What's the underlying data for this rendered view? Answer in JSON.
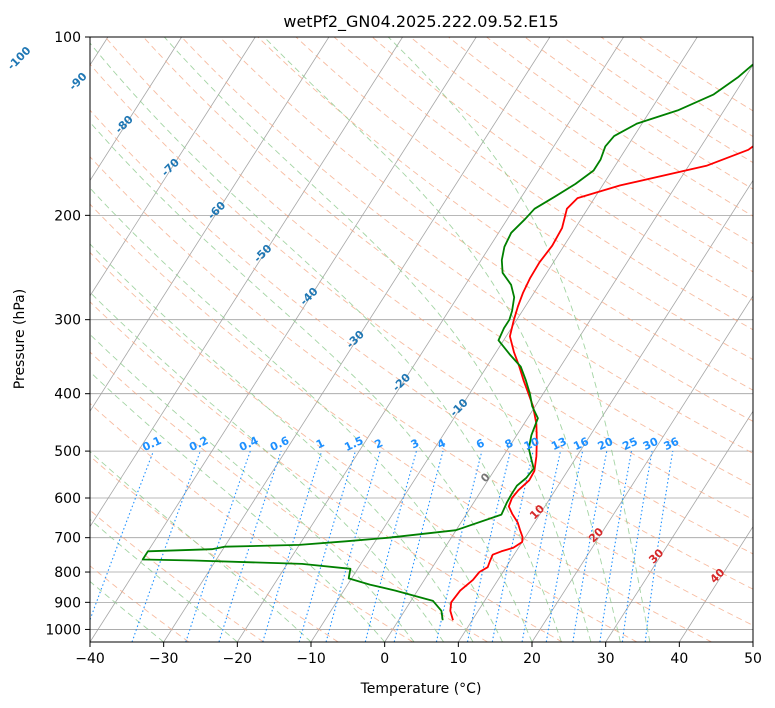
{
  "chart_data": {
    "type": "line",
    "subtype": "skew-T log-P diagram",
    "title": "wetPf2_GN04.2025.222.09.52.E15",
    "xlabel": "Temperature (°C)",
    "ylabel": "Pressure (hPa)",
    "xlim": [
      -40,
      50
    ],
    "ylim": [
      1050,
      100
    ],
    "y_scale": "log",
    "x_ticks": [
      "−40",
      "−30",
      "−20",
      "−10",
      "0",
      "10",
      "20",
      "30",
      "40",
      "50"
    ],
    "y_ticks": [
      "100",
      "200",
      "300",
      "400",
      "500",
      "600",
      "700",
      "800",
      "900",
      "1000"
    ],
    "grid": true,
    "series": [
      {
        "color": "#ff0000",
        "points": [
          [
            7.4,
            965
          ],
          [
            6.2,
            930
          ],
          [
            5.6,
            900
          ],
          [
            5.8,
            860
          ],
          [
            6.6,
            825
          ],
          [
            6.8,
            800
          ],
          [
            7.5,
            785
          ],
          [
            7.3,
            768
          ],
          [
            7.1,
            748
          ],
          [
            8.0,
            738
          ],
          [
            9.3,
            728
          ],
          [
            10.0,
            712
          ],
          [
            9.6,
            698
          ],
          [
            8.7,
            680
          ],
          [
            7.7,
            660
          ],
          [
            6.2,
            638
          ],
          [
            5.1,
            620
          ],
          [
            4.8,
            600
          ],
          [
            5.0,
            582
          ],
          [
            5.6,
            560
          ],
          [
            5.5,
            540
          ],
          [
            4.5,
            510
          ],
          [
            3.2,
            480
          ],
          [
            1.7,
            450
          ],
          [
            -0.3,
            420
          ],
          [
            -2.0,
            400
          ],
          [
            -3.8,
            380
          ],
          [
            -5.6,
            360
          ],
          [
            -7.6,
            340
          ],
          [
            -9.5,
            320
          ],
          [
            -10.4,
            300
          ],
          [
            -11.0,
            285
          ],
          [
            -11.5,
            270
          ],
          [
            -11.8,
            255
          ],
          [
            -11.9,
            240
          ],
          [
            -11.6,
            225
          ],
          [
            -11.8,
            210
          ],
          [
            -12.8,
            195
          ],
          [
            -12.3,
            187
          ],
          [
            -7.6,
            178
          ],
          [
            2.4,
            165
          ],
          [
            6.7,
            155
          ],
          [
            8.4,
            145
          ],
          [
            9.0,
            137
          ],
          [
            11.0,
            127
          ],
          [
            16.2,
            115
          ],
          [
            20.3,
            107
          ],
          [
            23.3,
            100
          ]
        ]
      },
      {
        "color": "#008000",
        "points": [
          [
            6.0,
            965
          ],
          [
            5.0,
            930
          ],
          [
            3.0,
            895
          ],
          [
            -3.0,
            860
          ],
          [
            -7.0,
            840
          ],
          [
            -10.4,
            820
          ],
          [
            -11.0,
            790
          ],
          [
            -18.0,
            775
          ],
          [
            -33.0,
            765
          ],
          [
            -40.0,
            762
          ],
          [
            -40.0,
            738
          ],
          [
            -31.5,
            732
          ],
          [
            -30.0,
            725
          ],
          [
            -20.0,
            720
          ],
          [
            -14.0,
            710
          ],
          [
            -8.5,
            700
          ],
          [
            0.0,
            680
          ],
          [
            4.8,
            640
          ],
          [
            4.5,
            610
          ],
          [
            4.4,
            590
          ],
          [
            4.4,
            572
          ],
          [
            5.0,
            555
          ],
          [
            5.2,
            535
          ],
          [
            4.0,
            515
          ],
          [
            2.8,
            495
          ],
          [
            2.0,
            470
          ],
          [
            1.4,
            440
          ],
          [
            -0.4,
            420
          ],
          [
            -1.8,
            400
          ],
          [
            -3.5,
            380
          ],
          [
            -5.4,
            360
          ],
          [
            -8.0,
            343
          ],
          [
            -10.7,
            325
          ],
          [
            -11.0,
            310
          ],
          [
            -11.0,
            300
          ],
          [
            -11.4,
            290
          ],
          [
            -12.3,
            275
          ],
          [
            -13.8,
            262
          ],
          [
            -16.0,
            250
          ],
          [
            -17.2,
            238
          ],
          [
            -18.0,
            226
          ],
          [
            -18.3,
            214
          ],
          [
            -17.6,
            203
          ],
          [
            -17.2,
            195
          ],
          [
            -15.5,
            186
          ],
          [
            -13.8,
            177
          ],
          [
            -12.5,
            168
          ],
          [
            -12.5,
            161
          ],
          [
            -13.0,
            153
          ],
          [
            -12.7,
            147
          ],
          [
            -10.7,
            140
          ],
          [
            -6.3,
            133
          ],
          [
            -2.8,
            125
          ],
          [
            -1.0,
            117
          ],
          [
            0.5,
            108
          ],
          [
            1.4,
            100
          ]
        ]
      }
    ],
    "dry_adiabat_labels": [
      "-100",
      "-90",
      "-80",
      "-70",
      "-60",
      "-50",
      "-40",
      "-30",
      "-20",
      "-10"
    ],
    "mixing_ratio_labels": [
      "0.1",
      "0.2",
      "0.4",
      "0.6",
      "1",
      "1.5",
      "2",
      "3",
      "4",
      "6",
      "8",
      "10",
      "13",
      "16",
      "20",
      "25",
      "30",
      "36"
    ],
    "moist_adiabat_labels": [
      "0",
      "10",
      "20",
      "30",
      "40"
    ],
    "colors": {
      "temperature": "#ff0000",
      "dewpoint": "#008000",
      "dry_adiabat": "#f4a582",
      "moist_adiabat": "#8cc98c",
      "mixing_ratio": "#1e90ff",
      "isotherm": "#808080",
      "isobar": "#a0a0a0"
    }
  }
}
